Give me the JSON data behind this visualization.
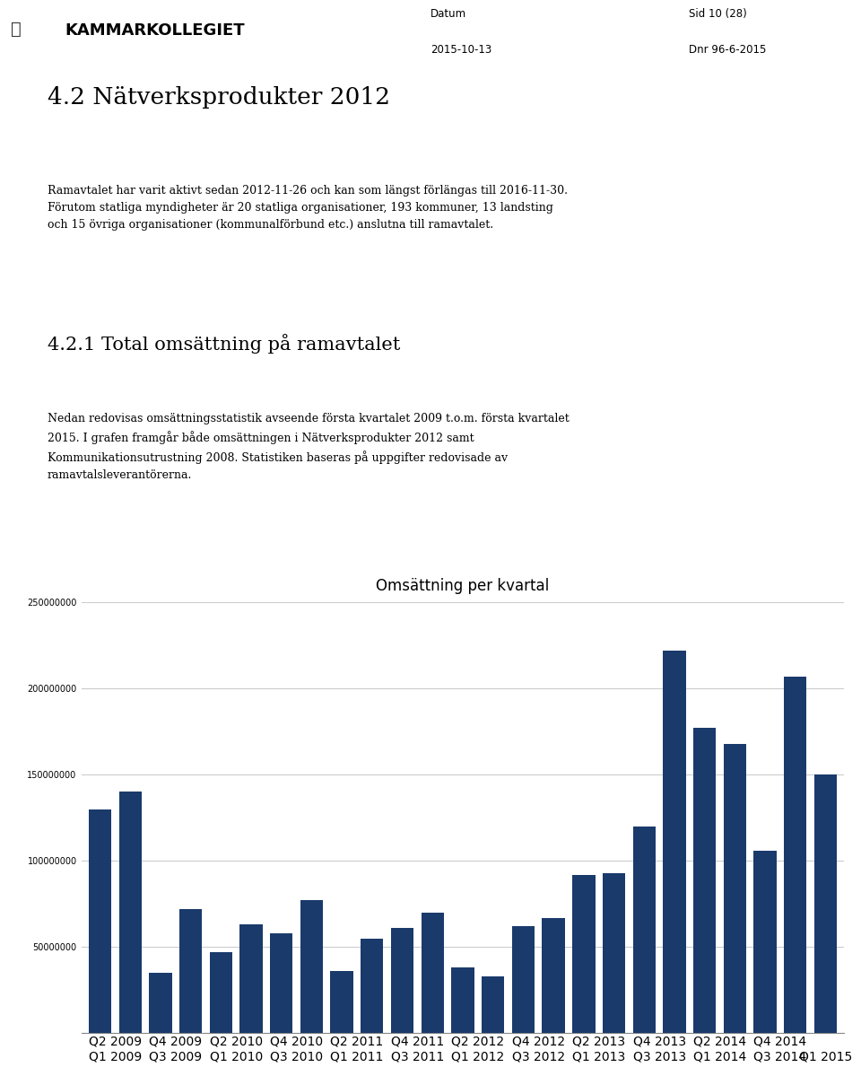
{
  "title": "Omsättning per kvartal",
  "bar_color": "#1a3a6b",
  "background_color": "#ffffff",
  "grid_color": "#cccccc",
  "values": [
    130000000,
    140000000,
    35000000,
    72000000,
    47000000,
    63000000,
    58000000,
    77000000,
    36000000,
    55000000,
    61000000,
    70000000,
    38000000,
    33000000,
    62000000,
    67000000,
    92000000,
    93000000,
    120000000,
    222000000,
    177000000,
    168000000,
    106000000,
    207000000,
    150000000
  ],
  "xtick_labels": [
    "Q2 2009\nQ1 2009",
    "Q4 2009\nQ3 2009",
    "Q2 2010\nQ1 2010",
    "Q4 2010\nQ3 2010",
    "Q2 2011\nQ1 2011",
    "Q4 2011\nQ3 2011",
    "Q2 2012\nQ1 2012",
    "Q4 2012\nQ3 2012",
    "Q2 2013\nQ1 2013",
    "Q4 2013\nQ3 2013",
    "Q2 2014\nQ1 2014",
    "Q4 2014\nQ3 2014",
    "\nQ1 2015"
  ],
  "ylim": [
    0,
    250000000
  ],
  "yticks": [
    0,
    50000000,
    100000000,
    150000000,
    200000000,
    250000000
  ],
  "title_fontsize": 12,
  "tick_fontsize": 7,
  "page_bg": "#ffffff",
  "header_text_left": "4.2 Nätverksprodukter 2012",
  "header_sub": "Ramavtalet har varit aktivt sedan 2012-11-26 och kan som längst förlängas till 2016-11-30.\nFörutom statliga myndigheter är 20 statliga organisationer, 193 kommuner, 13 landsting\noch 15 övriga organisationer (kommunalförbund etc.) anslutna till ramavtalet.",
  "section_title": "4.2.1 Total omsättning på ramavtalet",
  "section_body": "Nedan redovisas omsättningsstatistik avseende första kvartalet 2009 t.o.m. första kvartalet\n2015. I grafen framgår både omsättningen i Nätverksprodukter 2012 samt\nKommunikationsutrustning 2008. Statistiken baseras på uppgifter redovisade av\nramavtalsleverantörerna.",
  "datum_label": "Datum",
  "datum_value": "2015-10-13",
  "sid_label": "Sid 10 (28)",
  "dnr_label": "Dnr 96-6-2015"
}
